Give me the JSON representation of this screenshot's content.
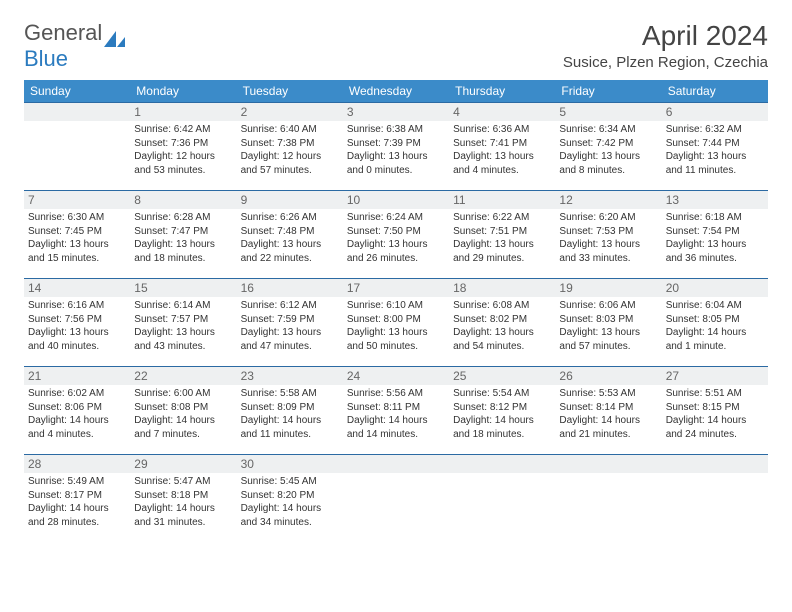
{
  "brand": {
    "part1": "General",
    "part2": "Blue"
  },
  "title": "April 2024",
  "location": "Susice, Plzen Region, Czechia",
  "colors": {
    "header_bg": "#3b8bc9",
    "header_text": "#ffffff",
    "week_border": "#2b6aa3",
    "daynum_bg": "#eef0f1",
    "daynum_text": "#666666",
    "body_text": "#333333",
    "brand_gray": "#555555",
    "brand_blue": "#2b7bbf",
    "page_bg": "#ffffff"
  },
  "typography": {
    "title_fontsize": 28,
    "location_fontsize": 15,
    "header_fontsize": 12,
    "daynum_fontsize": 12,
    "detail_fontsize": 10
  },
  "daysOfWeek": [
    "Sunday",
    "Monday",
    "Tuesday",
    "Wednesday",
    "Thursday",
    "Friday",
    "Saturday"
  ],
  "weeks": [
    [
      {
        "n": "",
        "sr": "",
        "ss": "",
        "dl1": "",
        "dl2": ""
      },
      {
        "n": "1",
        "sr": "Sunrise: 6:42 AM",
        "ss": "Sunset: 7:36 PM",
        "dl1": "Daylight: 12 hours",
        "dl2": "and 53 minutes."
      },
      {
        "n": "2",
        "sr": "Sunrise: 6:40 AM",
        "ss": "Sunset: 7:38 PM",
        "dl1": "Daylight: 12 hours",
        "dl2": "and 57 minutes."
      },
      {
        "n": "3",
        "sr": "Sunrise: 6:38 AM",
        "ss": "Sunset: 7:39 PM",
        "dl1": "Daylight: 13 hours",
        "dl2": "and 0 minutes."
      },
      {
        "n": "4",
        "sr": "Sunrise: 6:36 AM",
        "ss": "Sunset: 7:41 PM",
        "dl1": "Daylight: 13 hours",
        "dl2": "and 4 minutes."
      },
      {
        "n": "5",
        "sr": "Sunrise: 6:34 AM",
        "ss": "Sunset: 7:42 PM",
        "dl1": "Daylight: 13 hours",
        "dl2": "and 8 minutes."
      },
      {
        "n": "6",
        "sr": "Sunrise: 6:32 AM",
        "ss": "Sunset: 7:44 PM",
        "dl1": "Daylight: 13 hours",
        "dl2": "and 11 minutes."
      }
    ],
    [
      {
        "n": "7",
        "sr": "Sunrise: 6:30 AM",
        "ss": "Sunset: 7:45 PM",
        "dl1": "Daylight: 13 hours",
        "dl2": "and 15 minutes."
      },
      {
        "n": "8",
        "sr": "Sunrise: 6:28 AM",
        "ss": "Sunset: 7:47 PM",
        "dl1": "Daylight: 13 hours",
        "dl2": "and 18 minutes."
      },
      {
        "n": "9",
        "sr": "Sunrise: 6:26 AM",
        "ss": "Sunset: 7:48 PM",
        "dl1": "Daylight: 13 hours",
        "dl2": "and 22 minutes."
      },
      {
        "n": "10",
        "sr": "Sunrise: 6:24 AM",
        "ss": "Sunset: 7:50 PM",
        "dl1": "Daylight: 13 hours",
        "dl2": "and 26 minutes."
      },
      {
        "n": "11",
        "sr": "Sunrise: 6:22 AM",
        "ss": "Sunset: 7:51 PM",
        "dl1": "Daylight: 13 hours",
        "dl2": "and 29 minutes."
      },
      {
        "n": "12",
        "sr": "Sunrise: 6:20 AM",
        "ss": "Sunset: 7:53 PM",
        "dl1": "Daylight: 13 hours",
        "dl2": "and 33 minutes."
      },
      {
        "n": "13",
        "sr": "Sunrise: 6:18 AM",
        "ss": "Sunset: 7:54 PM",
        "dl1": "Daylight: 13 hours",
        "dl2": "and 36 minutes."
      }
    ],
    [
      {
        "n": "14",
        "sr": "Sunrise: 6:16 AM",
        "ss": "Sunset: 7:56 PM",
        "dl1": "Daylight: 13 hours",
        "dl2": "and 40 minutes."
      },
      {
        "n": "15",
        "sr": "Sunrise: 6:14 AM",
        "ss": "Sunset: 7:57 PM",
        "dl1": "Daylight: 13 hours",
        "dl2": "and 43 minutes."
      },
      {
        "n": "16",
        "sr": "Sunrise: 6:12 AM",
        "ss": "Sunset: 7:59 PM",
        "dl1": "Daylight: 13 hours",
        "dl2": "and 47 minutes."
      },
      {
        "n": "17",
        "sr": "Sunrise: 6:10 AM",
        "ss": "Sunset: 8:00 PM",
        "dl1": "Daylight: 13 hours",
        "dl2": "and 50 minutes."
      },
      {
        "n": "18",
        "sr": "Sunrise: 6:08 AM",
        "ss": "Sunset: 8:02 PM",
        "dl1": "Daylight: 13 hours",
        "dl2": "and 54 minutes."
      },
      {
        "n": "19",
        "sr": "Sunrise: 6:06 AM",
        "ss": "Sunset: 8:03 PM",
        "dl1": "Daylight: 13 hours",
        "dl2": "and 57 minutes."
      },
      {
        "n": "20",
        "sr": "Sunrise: 6:04 AM",
        "ss": "Sunset: 8:05 PM",
        "dl1": "Daylight: 14 hours",
        "dl2": "and 1 minute."
      }
    ],
    [
      {
        "n": "21",
        "sr": "Sunrise: 6:02 AM",
        "ss": "Sunset: 8:06 PM",
        "dl1": "Daylight: 14 hours",
        "dl2": "and 4 minutes."
      },
      {
        "n": "22",
        "sr": "Sunrise: 6:00 AM",
        "ss": "Sunset: 8:08 PM",
        "dl1": "Daylight: 14 hours",
        "dl2": "and 7 minutes."
      },
      {
        "n": "23",
        "sr": "Sunrise: 5:58 AM",
        "ss": "Sunset: 8:09 PM",
        "dl1": "Daylight: 14 hours",
        "dl2": "and 11 minutes."
      },
      {
        "n": "24",
        "sr": "Sunrise: 5:56 AM",
        "ss": "Sunset: 8:11 PM",
        "dl1": "Daylight: 14 hours",
        "dl2": "and 14 minutes."
      },
      {
        "n": "25",
        "sr": "Sunrise: 5:54 AM",
        "ss": "Sunset: 8:12 PM",
        "dl1": "Daylight: 14 hours",
        "dl2": "and 18 minutes."
      },
      {
        "n": "26",
        "sr": "Sunrise: 5:53 AM",
        "ss": "Sunset: 8:14 PM",
        "dl1": "Daylight: 14 hours",
        "dl2": "and 21 minutes."
      },
      {
        "n": "27",
        "sr": "Sunrise: 5:51 AM",
        "ss": "Sunset: 8:15 PM",
        "dl1": "Daylight: 14 hours",
        "dl2": "and 24 minutes."
      }
    ],
    [
      {
        "n": "28",
        "sr": "Sunrise: 5:49 AM",
        "ss": "Sunset: 8:17 PM",
        "dl1": "Daylight: 14 hours",
        "dl2": "and 28 minutes."
      },
      {
        "n": "29",
        "sr": "Sunrise: 5:47 AM",
        "ss": "Sunset: 8:18 PM",
        "dl1": "Daylight: 14 hours",
        "dl2": "and 31 minutes."
      },
      {
        "n": "30",
        "sr": "Sunrise: 5:45 AM",
        "ss": "Sunset: 8:20 PM",
        "dl1": "Daylight: 14 hours",
        "dl2": "and 34 minutes."
      },
      {
        "n": "",
        "sr": "",
        "ss": "",
        "dl1": "",
        "dl2": ""
      },
      {
        "n": "",
        "sr": "",
        "ss": "",
        "dl1": "",
        "dl2": ""
      },
      {
        "n": "",
        "sr": "",
        "ss": "",
        "dl1": "",
        "dl2": ""
      },
      {
        "n": "",
        "sr": "",
        "ss": "",
        "dl1": "",
        "dl2": ""
      }
    ]
  ]
}
